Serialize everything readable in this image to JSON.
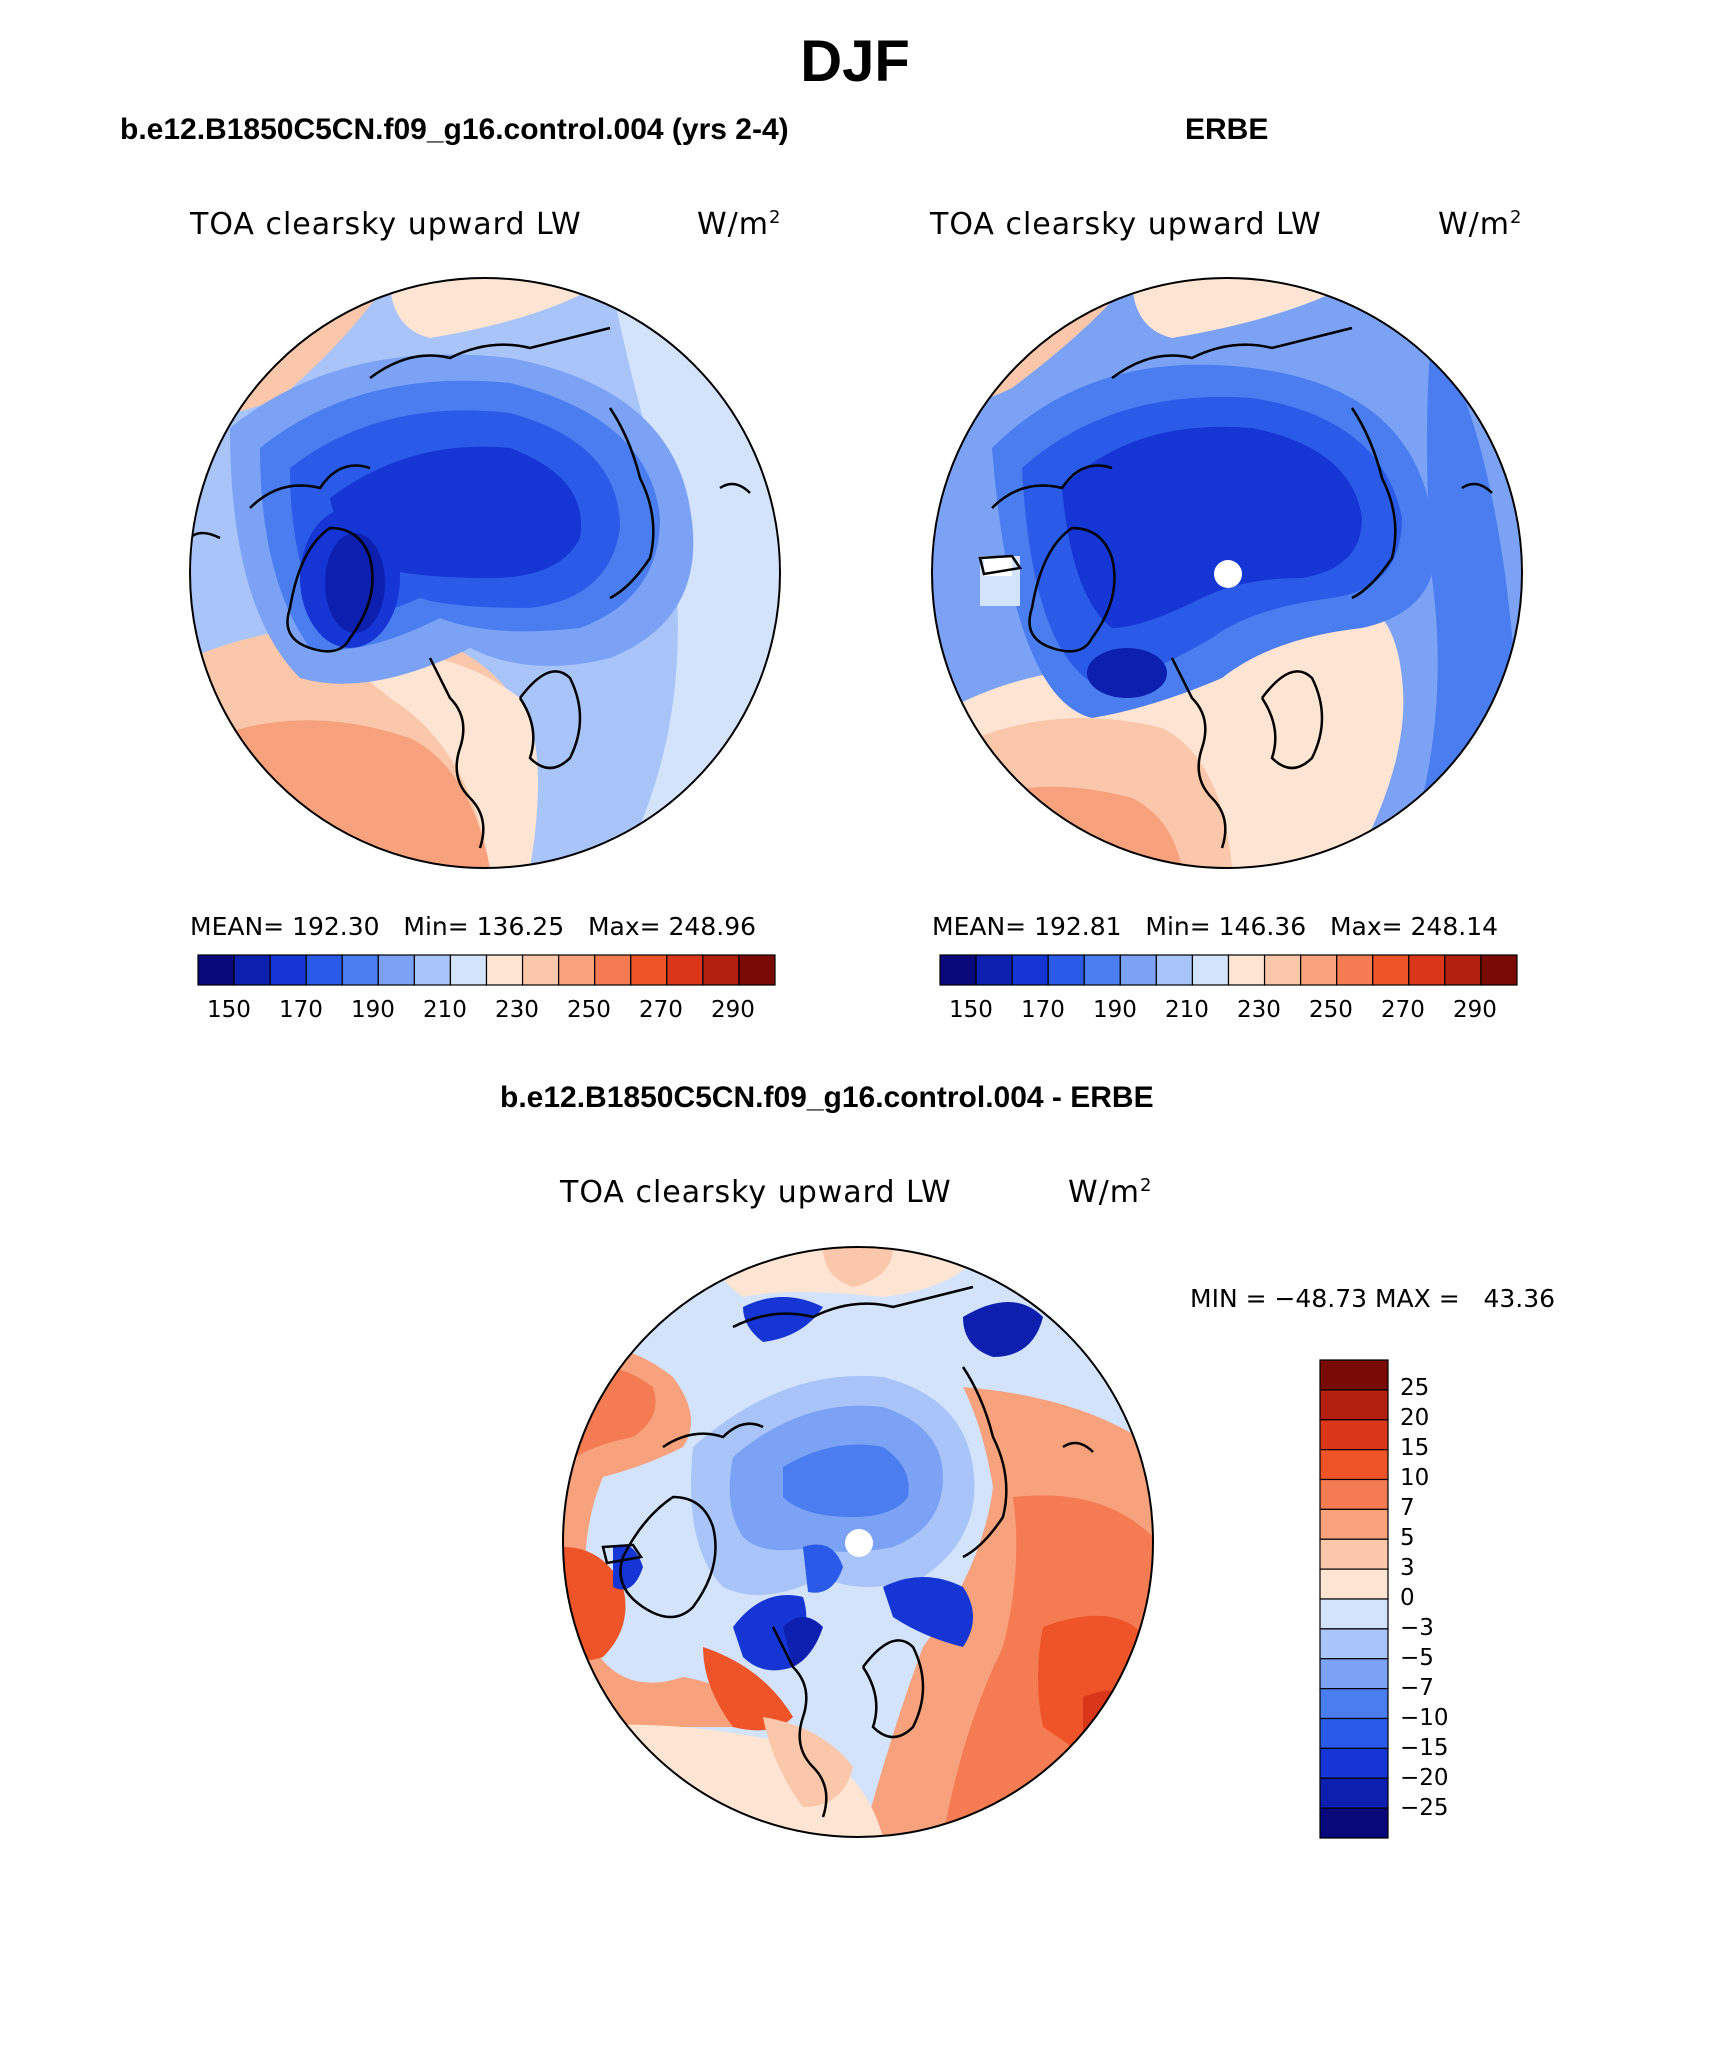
{
  "title": "DJF",
  "panels": [
    {
      "id": "model",
      "title": "b.e12.B1850C5CN.f09_g16.control.004 (yrs 2-4)",
      "variable": "TOA clearsky upward LW",
      "units_base": "W/m",
      "units_exp": "2",
      "stats": "MEAN= 192.30   Min= 136.25   Max= 248.96",
      "colorbar_ticks": [
        "150",
        "170",
        "190",
        "210",
        "230",
        "250",
        "270",
        "290"
      ]
    },
    {
      "id": "obs",
      "title": "ERBE",
      "variable": "TOA clearsky upward LW",
      "units_base": "W/m",
      "units_exp": "2",
      "stats": "MEAN= 192.81   Min= 146.36   Max= 248.14",
      "colorbar_ticks": [
        "150",
        "170",
        "190",
        "210",
        "230",
        "250",
        "270",
        "290"
      ]
    },
    {
      "id": "diff",
      "title": "b.e12.B1850C5CN.f09_g16.control.004 - ERBE",
      "variable": "TOA clearsky upward LW",
      "units_base": "W/m",
      "units_exp": "2",
      "stats": "MIN = −48.73 MAX =   43.36",
      "colorbar_ticks": [
        "25",
        "20",
        "15",
        "10",
        "7",
        "5",
        "3",
        "0",
        "−3",
        "−5",
        "−7",
        "−10",
        "−15",
        "−20",
        "−25"
      ]
    }
  ],
  "colors": {
    "abs_scale": [
      "#08087a",
      "#0c1fae",
      "#1535d4",
      "#2a5be8",
      "#4a7df0",
      "#7ba2f5",
      "#a9c4f8",
      "#d2e3fb",
      "#fde4d3",
      "#fbc7ab",
      "#f7a17d",
      "#f47b52",
      "#ef5428",
      "#d9361a",
      "#b3200f",
      "#7a0a05"
    ],
    "diff_scale": [
      "#08087a",
      "#0c1fae",
      "#1535d4",
      "#2a5be8",
      "#4a7df0",
      "#7ba2f5",
      "#a9c4f8",
      "#d2e3fb",
      "#fde4d3",
      "#fbc7ab",
      "#f7a17d",
      "#f47b52",
      "#ef5428",
      "#d9361a",
      "#b3200f",
      "#7a0a05"
    ]
  }
}
